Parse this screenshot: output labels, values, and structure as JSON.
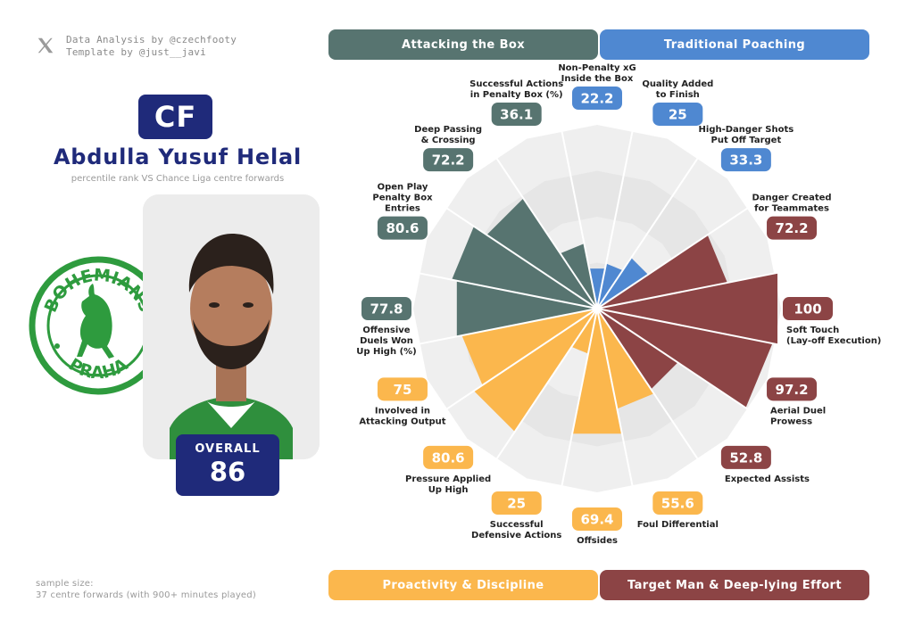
{
  "credits": {
    "line1": "Data Analysis by @czechfooty",
    "line2": "Template by @just__javi"
  },
  "player": {
    "position": "CF",
    "name": "Abdulla Yusuf Helal",
    "subtitle": "percentile rank VS Chance Liga centre forwards",
    "overall_label": "OVERALL",
    "overall_value": "86"
  },
  "club_logo": {
    "text_top": "BOHEMIANS",
    "text_bottom": "PRAHA",
    "color": "#2e9b3e"
  },
  "groups": [
    {
      "label": "Attacking the Box",
      "color": "#577470"
    },
    {
      "label": "Traditional Poaching",
      "color": "#4f88d1"
    },
    {
      "label": "Proactivity & Discipline",
      "color": "#fbb74d"
    },
    {
      "label": "Target Man & Deep-lying Effort",
      "color": "#8c4445"
    }
  ],
  "footnote": {
    "line1": "sample size:",
    "line2": "37 centre forwards (with 900+ minutes played)"
  },
  "chart_data": {
    "type": "radar",
    "scale": [
      0,
      100
    ],
    "metrics": [
      {
        "label": [
          "Non-Penalty xG",
          "Inside the Box"
        ],
        "value": 22.2,
        "group": 1
      },
      {
        "label": [
          "Quality Added",
          "to Finish"
        ],
        "value": 25,
        "group": 1
      },
      {
        "label": [
          "High-Danger Shots",
          "Put Off Target"
        ],
        "value": 33.3,
        "group": 1
      },
      {
        "label": [
          "Danger Created",
          "for Teammates"
        ],
        "value": 72.2,
        "group": 3
      },
      {
        "label": [
          "Soft Touch",
          "(Lay-off Execution)"
        ],
        "value": 100,
        "group": 3
      },
      {
        "label": [
          "Aerial Duel",
          "Prowess"
        ],
        "value": 97.2,
        "group": 3
      },
      {
        "label": [
          "Expected Assists"
        ],
        "value": 52.8,
        "group": 3
      },
      {
        "label": [
          "Foul Differential"
        ],
        "value": 55.6,
        "group": 2
      },
      {
        "label": [
          "Offsides"
        ],
        "value": 69.4,
        "group": 2
      },
      {
        "label": [
          "Successful",
          "Defensive Actions"
        ],
        "value": 25,
        "group": 2
      },
      {
        "label": [
          "Pressure Applied",
          "Up High"
        ],
        "value": 80.6,
        "group": 2
      },
      {
        "label": [
          "Involved in",
          "Attacking Output"
        ],
        "value": 75,
        "group": 2
      },
      {
        "label": [
          "Offensive",
          "Duels Won",
          "Up High (%)"
        ],
        "value": 77.8,
        "group": 0
      },
      {
        "label": [
          "Open Play",
          "Penalty Box",
          "Entries"
        ],
        "value": 80.6,
        "group": 0
      },
      {
        "label": [
          "Deep Passing",
          "& Crossing"
        ],
        "value": 72.2,
        "group": 0
      },
      {
        "label": [
          "Successful Actions",
          "in Penalty Box (%)"
        ],
        "value": 36.1,
        "group": 0
      }
    ],
    "background_color": "#efefef",
    "grid_color": "#ffffff"
  }
}
